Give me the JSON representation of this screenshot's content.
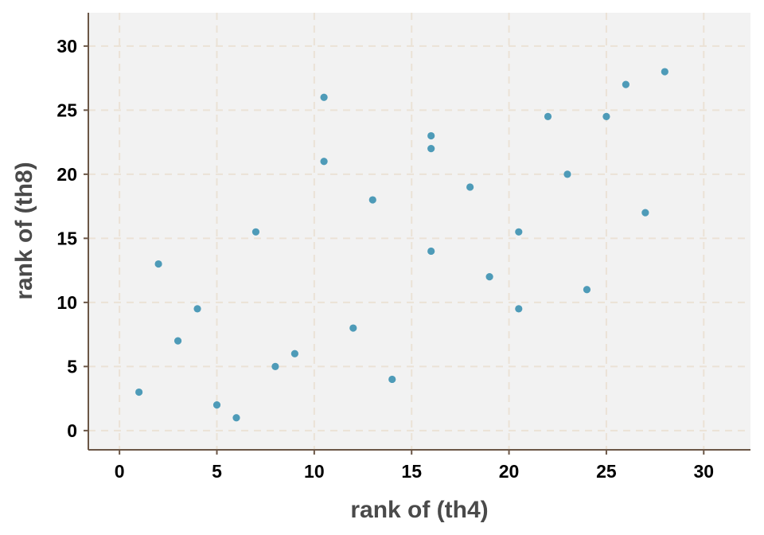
{
  "chart_data": {
    "type": "scatter",
    "xlabel": "rank of (th4)",
    "ylabel": "rank of (th8)",
    "xlim": [
      -1.6,
      32.4
    ],
    "ylim": [
      -1.5,
      32.6
    ],
    "x_ticks": [
      0,
      5,
      10,
      15,
      20,
      25,
      30
    ],
    "y_ticks": [
      0,
      5,
      10,
      15,
      20,
      25,
      30
    ],
    "grid": true,
    "colors": {
      "panel_background": "#f2f2f2",
      "grid": "#ebe2d6",
      "axis_line": "#6b5646",
      "point": "#4e9bb8"
    },
    "points": [
      {
        "x": 1,
        "y": 3
      },
      {
        "x": 2,
        "y": 13
      },
      {
        "x": 3,
        "y": 7
      },
      {
        "x": 4,
        "y": 9.5
      },
      {
        "x": 5,
        "y": 2
      },
      {
        "x": 6,
        "y": 1
      },
      {
        "x": 7,
        "y": 15.5
      },
      {
        "x": 8,
        "y": 5
      },
      {
        "x": 9,
        "y": 6
      },
      {
        "x": 10.5,
        "y": 26
      },
      {
        "x": 10.5,
        "y": 21
      },
      {
        "x": 12,
        "y": 8
      },
      {
        "x": 13,
        "y": 18
      },
      {
        "x": 14,
        "y": 4
      },
      {
        "x": 16,
        "y": 23
      },
      {
        "x": 16,
        "y": 22
      },
      {
        "x": 16,
        "y": 14
      },
      {
        "x": 18,
        "y": 19
      },
      {
        "x": 19,
        "y": 12
      },
      {
        "x": 20.5,
        "y": 15.5
      },
      {
        "x": 20.5,
        "y": 9.5
      },
      {
        "x": 22,
        "y": 24.5
      },
      {
        "x": 23,
        "y": 20
      },
      {
        "x": 24,
        "y": 11
      },
      {
        "x": 25,
        "y": 24.5
      },
      {
        "x": 26,
        "y": 27
      },
      {
        "x": 27,
        "y": 17
      },
      {
        "x": 28,
        "y": 28
      }
    ]
  }
}
